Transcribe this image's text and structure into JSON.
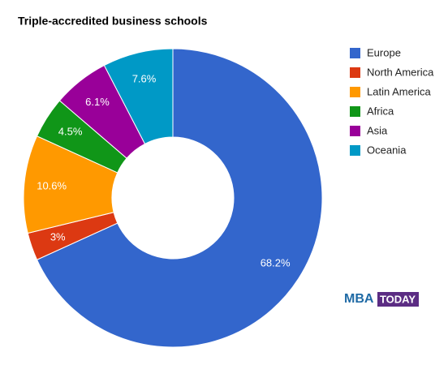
{
  "chart_data": {
    "type": "donut",
    "title": "Triple-accredited business schools",
    "series": [
      {
        "name": "Europe",
        "color": "#3366cc",
        "values": [
          68.2
        ],
        "value_labels": [
          "68.2%"
        ]
      },
      {
        "name": "North America",
        "color": "#dc3912",
        "values": [
          3
        ],
        "value_labels": [
          "3%"
        ]
      },
      {
        "name": "Latin America",
        "color": "#ff9900",
        "values": [
          10.6
        ],
        "value_labels": [
          "10.6%"
        ]
      },
      {
        "name": "Africa",
        "color": "#109618",
        "values": [
          4.5
        ],
        "value_labels": [
          "4.5%"
        ]
      },
      {
        "name": "Asia",
        "color": "#990099",
        "values": [
          6.1
        ],
        "value_labels": [
          "6.1%"
        ]
      },
      {
        "name": "Oceania",
        "color": "#0099c6",
        "values": [
          7.6
        ],
        "value_labels": [
          "7.6%"
        ]
      }
    ],
    "legend": "right",
    "annotations": [
      "MBA",
      "TODAY"
    ]
  }
}
